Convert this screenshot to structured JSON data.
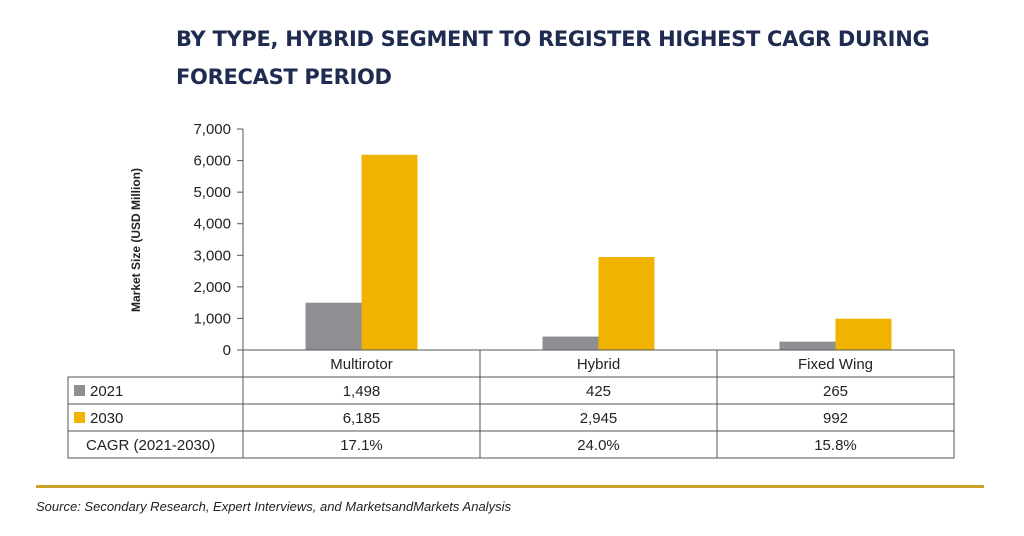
{
  "title": "BY TYPE, HYBRID SEGMENT TO REGISTER HIGHEST CAGR DURING FORECAST PERIOD",
  "source": "Source: Secondary Research, Expert Interviews, and MarketsandMarkets Analysis",
  "colors": {
    "s2021": "#8e8e93",
    "s2030": "#f0b400",
    "title": "#1f2b50",
    "rule": "#c9a227"
  },
  "chart_data": {
    "type": "bar",
    "ylabel": "Market Size (USD Million)",
    "ylim": [
      0,
      7000
    ],
    "yticks": [
      "0",
      "1,000",
      "2,000",
      "3,000",
      "4,000",
      "5,000",
      "6,000",
      "7,000"
    ],
    "categories": [
      "Multirotor",
      "Hybrid",
      "Fixed Wing"
    ],
    "series": [
      {
        "name": "2021",
        "values": [
          1498,
          425,
          265
        ],
        "labels": [
          "1,498",
          "425",
          "265"
        ]
      },
      {
        "name": "2030",
        "values": [
          6185,
          2945,
          992
        ],
        "labels": [
          "6,185",
          "2,945",
          "992"
        ]
      }
    ],
    "extra_row": {
      "name": "CAGR (2021-2030)",
      "values": [
        "17.1%",
        "24.0%",
        "15.8%"
      ]
    }
  }
}
